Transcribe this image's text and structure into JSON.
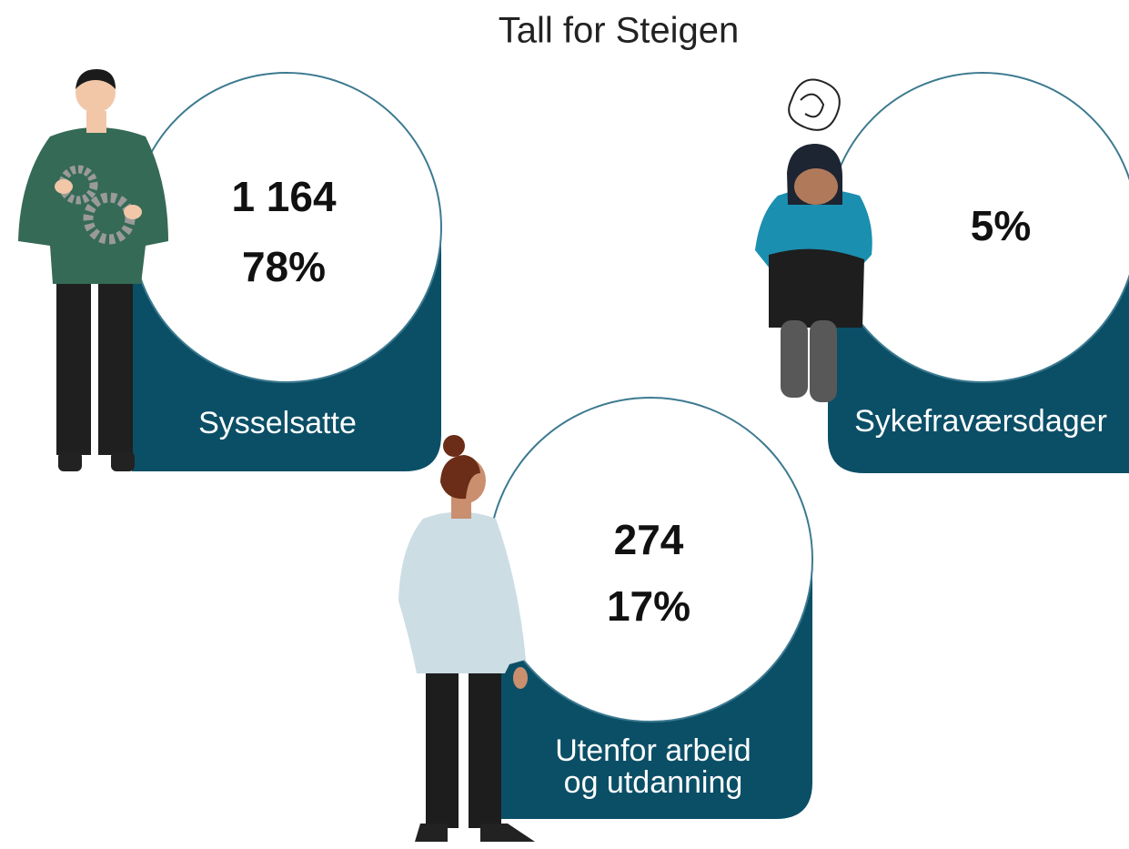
{
  "title": "Tall for Steigen",
  "cards": [
    {
      "count": "1 164",
      "percent": "78%",
      "label": [
        "Sysselsatte"
      ]
    },
    {
      "percent": "5%",
      "label": [
        "Sykefraværsdager"
      ]
    },
    {
      "count": "274",
      "percent": "17%",
      "label": [
        "Utenfor arbeid",
        "og utdanning"
      ]
    }
  ]
}
